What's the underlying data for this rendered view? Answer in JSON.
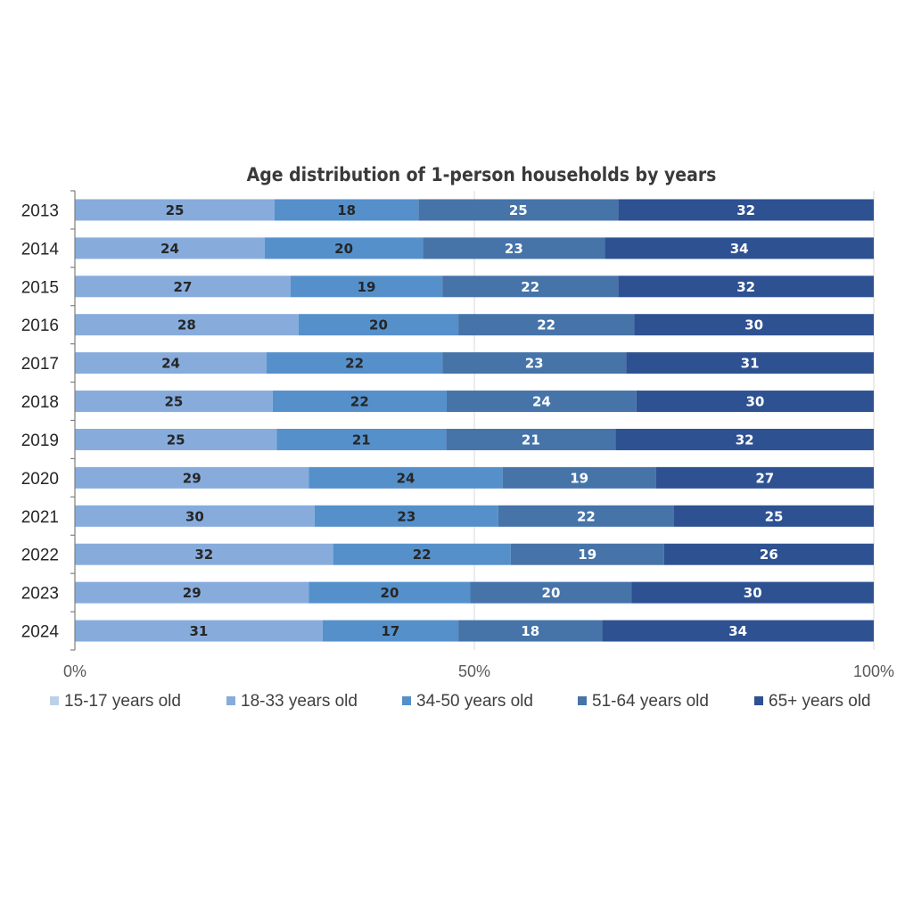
{
  "chart_data": {
    "type": "bar",
    "orientation": "horizontal",
    "stacked": "percent",
    "title": "Age distribution of 1-person households by years",
    "categories": [
      "2013",
      "2014",
      "2015",
      "2016",
      "2017",
      "2018",
      "2019",
      "2020",
      "2021",
      "2022",
      "2023",
      "2024"
    ],
    "series": [
      {
        "name": "15-17 years old",
        "color": "#bdd0ea",
        "values": [
          0,
          0,
          0,
          0,
          0,
          0,
          0,
          0,
          0,
          0,
          0,
          0
        ]
      },
      {
        "name": "18-33 years old",
        "color": "#87acdc",
        "values": [
          25,
          24,
          27,
          28,
          24,
          25,
          25,
          29,
          30,
          32,
          29,
          31
        ]
      },
      {
        "name": "34-50 years old",
        "color": "#5590cb",
        "values": [
          18,
          20,
          19,
          20,
          22,
          22,
          21,
          24,
          23,
          22,
          20,
          17
        ]
      },
      {
        "name": "51-64 years old",
        "color": "#4674a9",
        "values": [
          25,
          23,
          22,
          22,
          23,
          24,
          21,
          19,
          22,
          19,
          20,
          18
        ]
      },
      {
        "name": "65+ years old",
        "color": "#2e5192",
        "values": [
          32,
          34,
          32,
          30,
          31,
          30,
          32,
          27,
          25,
          26,
          30,
          34
        ]
      }
    ],
    "data_label_colors": [
      "#262626",
      "#262626",
      "#262626",
      "#ffffff",
      "#ffffff"
    ],
    "x_ticks": [
      "0%",
      "50%",
      "100%"
    ],
    "xlim": [
      0,
      100
    ],
    "grid": true,
    "legend": "bottom"
  }
}
